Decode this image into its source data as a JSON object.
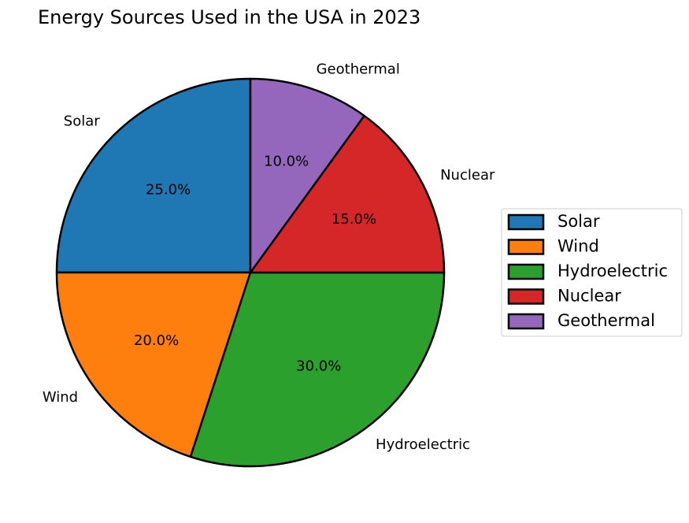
{
  "chart_data": {
    "type": "pie",
    "title": "Energy Sources Used in the USA in 2023",
    "categories": [
      "Solar",
      "Wind",
      "Hydroelectric",
      "Nuclear",
      "Geothermal"
    ],
    "values": [
      25.0,
      20.0,
      30.0,
      15.0,
      10.0
    ],
    "value_labels": [
      "25.0%",
      "20.0%",
      "30.0%",
      "15.0%",
      "10.0%"
    ],
    "colors": [
      "#1f77b4",
      "#ff7f0e",
      "#2ca02c",
      "#d62728",
      "#9467bd"
    ],
    "start_angle_deg": 90,
    "direction": "counterclockwise",
    "legend": {
      "placement": "right",
      "entries": [
        "Solar",
        "Wind",
        "Hydroelectric",
        "Nuclear",
        "Geothermal"
      ]
    }
  }
}
